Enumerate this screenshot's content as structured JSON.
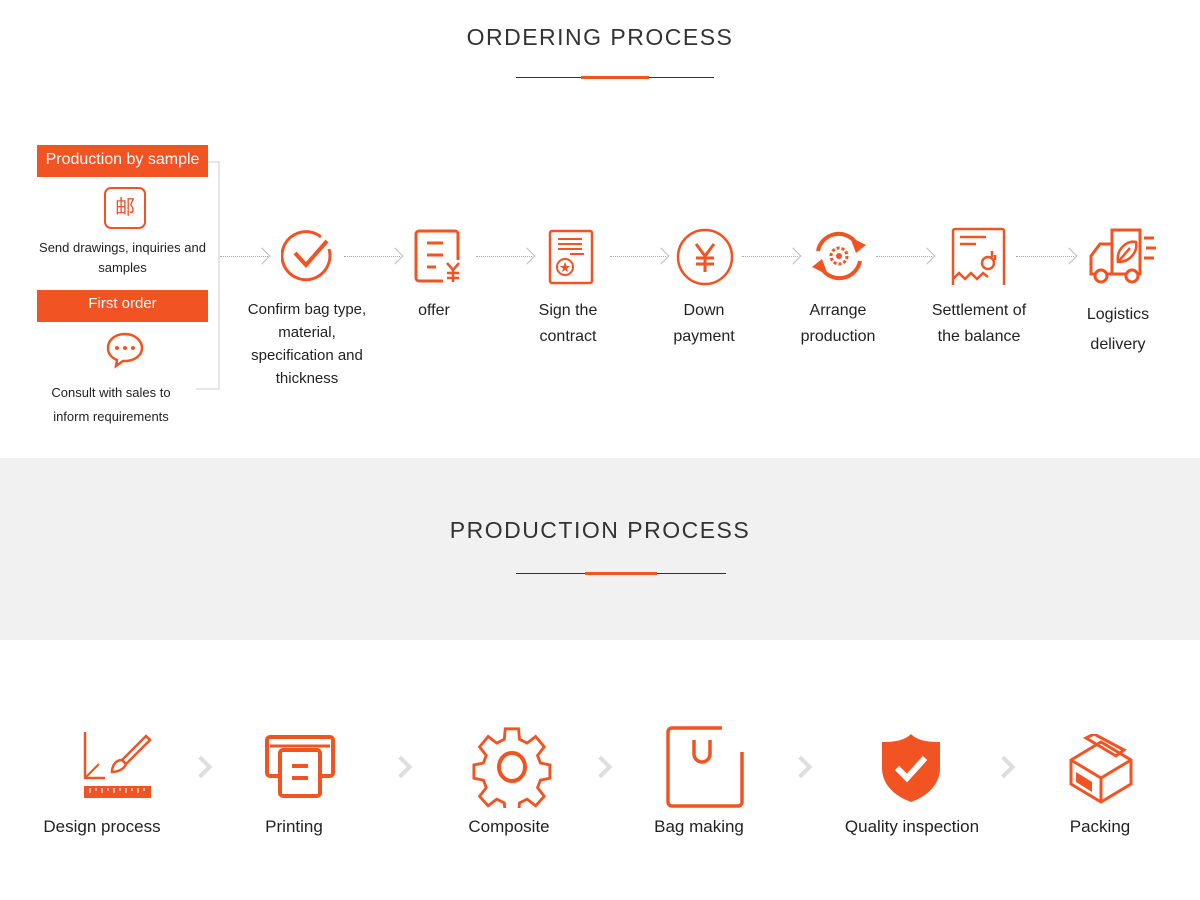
{
  "ordering": {
    "title": "ORDERING PROCESS",
    "left_panel": {
      "header": "Production by sample",
      "send_text": "Send drawings, inquiries and samples",
      "first_order": "First order",
      "consult_text": "Consult with sales to inform requirements"
    },
    "steps": [
      {
        "label": "Confirm bag type, material, specification and thickness",
        "icon": "check-circle-icon"
      },
      {
        "label": "offer",
        "icon": "quote-yen-icon"
      },
      {
        "label": "Sign the contract",
        "icon": "contract-icon"
      },
      {
        "label": "Down payment",
        "icon": "yen-circle-icon"
      },
      {
        "label": "Arrange production",
        "icon": "production-cycle-icon"
      },
      {
        "label": "Settlement of the balance",
        "icon": "receipt-ok-icon"
      },
      {
        "label": "Logistics delivery",
        "icon": "truck-icon"
      }
    ]
  },
  "production": {
    "title": "PRODUCTION PROCESS",
    "steps": [
      {
        "label": "Design process",
        "icon": "design-icon"
      },
      {
        "label": "Printing",
        "icon": "printer-icon"
      },
      {
        "label": "Composite",
        "icon": "gear-icon"
      },
      {
        "label": "Bag making",
        "icon": "bag-icon"
      },
      {
        "label": "Quality inspection",
        "icon": "shield-check-icon"
      },
      {
        "label": "Packing",
        "icon": "box-icon"
      }
    ]
  },
  "colors": {
    "accent": "#f25322",
    "band": "#f1f1f1"
  }
}
